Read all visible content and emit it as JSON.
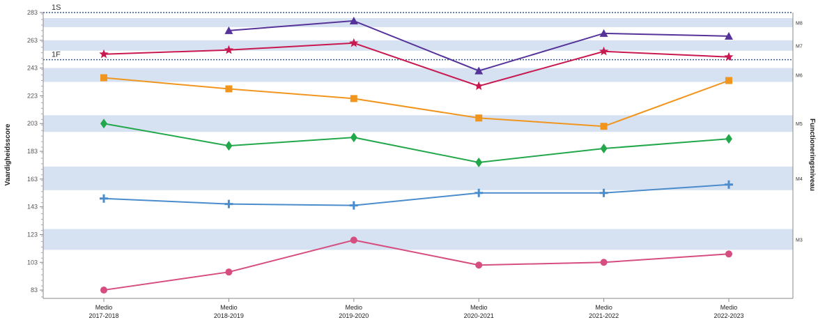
{
  "chart_data": {
    "type": "line",
    "xlabel": "",
    "ylabel": "Vaardigheidsscore",
    "y2label": "Functioneringsniveau",
    "ylim": [
      77,
      283
    ],
    "yticks": [
      83,
      103,
      123,
      143,
      163,
      183,
      203,
      223,
      243,
      263,
      283
    ],
    "categories": [
      [
        "Medio",
        "2017-2018"
      ],
      [
        "Medio",
        "2018-2019"
      ],
      [
        "Medio",
        "2019-2020"
      ],
      [
        "Medio",
        "2020-2021"
      ],
      [
        "Medio",
        "2021-2022"
      ],
      [
        "Medio",
        "2022-2023"
      ]
    ],
    "reference_lines": [
      {
        "label": "1S",
        "value": 283
      },
      {
        "label": "1F",
        "value": 249
      }
    ],
    "bands": [
      {
        "label": "M8",
        "from": 272.5,
        "to": 279
      },
      {
        "label": "M7",
        "from": 255.5,
        "to": 263
      },
      {
        "label": "M6",
        "from": 233,
        "to": 243
      },
      {
        "label": "M5",
        "from": 197,
        "to": 209
      },
      {
        "label": "M4",
        "from": 155,
        "to": 172
      },
      {
        "label": "M3",
        "from": 112,
        "to": 127
      }
    ],
    "band_color": "#d6e1f1",
    "grid": false,
    "series": [
      {
        "marker": "triangle",
        "color": "#553399",
        "values": [
          null,
          270,
          277,
          241,
          268,
          266
        ]
      },
      {
        "marker": "star",
        "color": "#c8184f",
        "values": [
          253,
          256,
          261,
          230,
          255,
          251
        ]
      },
      {
        "marker": "square",
        "color": "#f0961e",
        "values": [
          236,
          228,
          221,
          207,
          201,
          234
        ]
      },
      {
        "marker": "diamond",
        "color": "#22a84a",
        "values": [
          203,
          187,
          193,
          175,
          185,
          192
        ]
      },
      {
        "marker": "plus",
        "color": "#4a8ccc",
        "values": [
          149,
          145,
          144,
          153,
          153,
          159
        ]
      },
      {
        "marker": "circle",
        "color": "#d64d7f",
        "values": [
          83,
          96,
          119,
          101,
          103,
          109
        ]
      }
    ]
  }
}
